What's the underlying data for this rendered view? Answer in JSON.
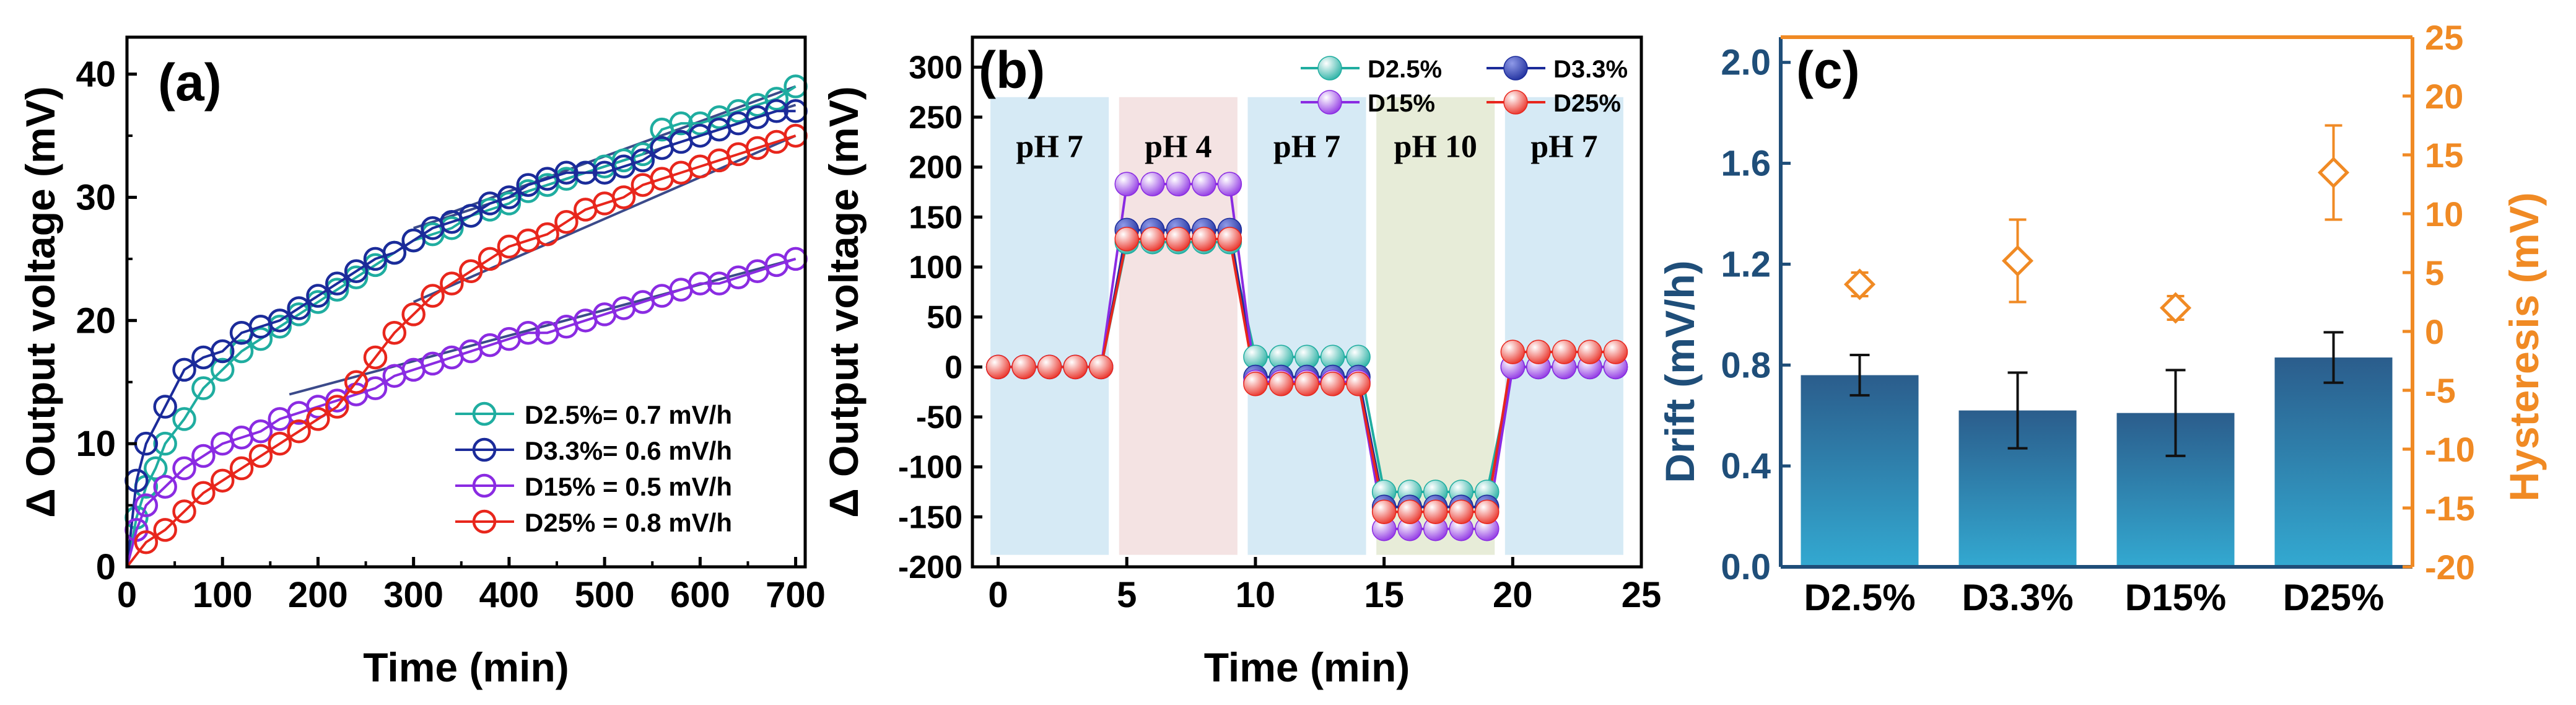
{
  "chart_data": [
    {
      "panel": "(a)",
      "type": "line",
      "xlabel": "Time (min)",
      "ylabel": "Δ Output voltage (mV)",
      "xlim": [
        0,
        710
      ],
      "ylim": [
        0,
        43
      ],
      "xticks": [
        0,
        100,
        200,
        300,
        400,
        500,
        600,
        700
      ],
      "yticks": [
        0,
        10,
        20,
        30,
        40
      ],
      "legend_position": "bottom-right",
      "series": [
        {
          "name": "D2.5%",
          "legend_label": "D2.5%= 0.7 mV/h",
          "color": "#1fada0",
          "x": [
            0,
            10,
            20,
            30,
            40,
            60,
            80,
            100,
            120,
            140,
            160,
            180,
            200,
            220,
            240,
            260,
            280,
            300,
            320,
            340,
            360,
            380,
            400,
            420,
            440,
            460,
            480,
            500,
            520,
            540,
            560,
            580,
            600,
            620,
            640,
            660,
            680,
            700
          ],
          "values": [
            0,
            4,
            6.5,
            8,
            10,
            12,
            14.5,
            16,
            17.5,
            18.5,
            19.5,
            20.5,
            21.5,
            22.5,
            23.5,
            24.5,
            25.5,
            26.5,
            27,
            27.5,
            28.5,
            29,
            29.5,
            30.5,
            31,
            31.5,
            32,
            32.5,
            33,
            33.5,
            35.5,
            36,
            36,
            36.5,
            37,
            37.5,
            38,
            39
          ]
        },
        {
          "name": "D3.3%",
          "legend_label": "D3.3%= 0.6 mV/h",
          "color": "#1b2b9a",
          "x": [
            0,
            10,
            20,
            40,
            60,
            80,
            100,
            120,
            140,
            160,
            180,
            200,
            220,
            240,
            260,
            280,
            300,
            320,
            340,
            360,
            380,
            400,
            420,
            440,
            460,
            480,
            500,
            520,
            540,
            560,
            580,
            600,
            620,
            640,
            660,
            680,
            700
          ],
          "values": [
            0,
            7,
            10,
            13,
            16,
            17,
            17.5,
            19,
            19.5,
            20,
            21,
            22,
            23,
            24,
            25,
            25.5,
            26.5,
            27.5,
            28,
            28.5,
            29.5,
            30,
            31,
            31.5,
            32,
            32,
            32,
            32.5,
            33,
            34,
            34.5,
            35,
            35.5,
            36,
            36.5,
            37,
            37
          ]
        },
        {
          "name": "D15%",
          "legend_label": "D15% = 0.5 mV/h",
          "color": "#8a2be2",
          "x": [
            0,
            10,
            20,
            40,
            60,
            80,
            100,
            120,
            140,
            160,
            180,
            200,
            220,
            240,
            260,
            280,
            300,
            320,
            340,
            360,
            380,
            400,
            420,
            440,
            460,
            480,
            500,
            520,
            540,
            560,
            580,
            600,
            620,
            640,
            660,
            680,
            700
          ],
          "values": [
            0,
            3,
            5,
            6.5,
            8,
            9,
            10,
            10.5,
            11,
            12,
            12.5,
            13,
            13.5,
            14,
            14.5,
            15.5,
            16,
            16.5,
            17,
            17.5,
            18,
            18.5,
            19,
            19,
            19.5,
            20,
            20.5,
            21,
            21.5,
            22,
            22.5,
            23,
            23,
            23.5,
            24,
            24.5,
            25
          ]
        },
        {
          "name": "D25%",
          "legend_label": "D25% = 0.8 mV/h",
          "color": "#e8261c",
          "x": [
            0,
            20,
            40,
            60,
            80,
            100,
            120,
            140,
            160,
            180,
            200,
            220,
            240,
            260,
            280,
            300,
            320,
            340,
            360,
            380,
            400,
            420,
            440,
            460,
            480,
            500,
            520,
            540,
            560,
            580,
            600,
            620,
            640,
            660,
            680,
            700
          ],
          "values": [
            0,
            2,
            3,
            4.5,
            6,
            7,
            8,
            9,
            10,
            11,
            12,
            13,
            15,
            17,
            19,
            20.5,
            22,
            23,
            24,
            25,
            26,
            26.5,
            27,
            28,
            29,
            29.5,
            30,
            31,
            31.5,
            32,
            32.5,
            33,
            33.5,
            34,
            34.5,
            35
          ]
        }
      ],
      "fit_lines": [
        {
          "series": "D2.5%",
          "x": [
            330,
            700
          ],
          "y": [
            28.5,
            39
          ]
        },
        {
          "series": "D3.3%",
          "x": [
            300,
            700
          ],
          "y": [
            27.5,
            37.5
          ]
        },
        {
          "series": "D15%",
          "x": [
            170,
            700
          ],
          "y": [
            14,
            25
          ]
        },
        {
          "series": "D25%",
          "x": [
            300,
            700
          ],
          "y": [
            21.5,
            35
          ]
        }
      ]
    },
    {
      "panel": "(b)",
      "type": "line",
      "xlabel": "Time (min)",
      "ylabel": "Δ Output voltage (mV)",
      "xlim": [
        -1,
        25
      ],
      "ylim": [
        -200,
        330
      ],
      "xticks": [
        0,
        5,
        10,
        15,
        20,
        25
      ],
      "yticks": [
        -200,
        -150,
        -100,
        -50,
        0,
        50,
        100,
        150,
        200,
        250,
        300
      ],
      "legend_position": "top-right",
      "ph_regions": [
        {
          "label": "pH 7",
          "x0": -0.3,
          "x1": 4.3,
          "color": "#d6eaf5"
        },
        {
          "label": "pH 4",
          "x0": 4.7,
          "x1": 9.3,
          "color": "#f4e3e3"
        },
        {
          "label": "pH 7",
          "x0": 9.7,
          "x1": 14.3,
          "color": "#d6eaf5"
        },
        {
          "label": "pH 10",
          "x0": 14.7,
          "x1": 19.3,
          "color": "#e7ecd8"
        },
        {
          "label": "pH 7",
          "x0": 19.7,
          "x1": 24.3,
          "color": "#d6eaf5"
        }
      ],
      "series": [
        {
          "name": "D2.5%",
          "color": "#1fada0",
          "x": [
            0,
            1,
            2,
            3,
            4,
            5,
            6,
            7,
            8,
            9,
            10,
            11,
            12,
            13,
            14,
            15,
            16,
            17,
            18,
            19,
            20,
            21,
            22,
            23,
            24
          ],
          "values": [
            0,
            0,
            0,
            0,
            0,
            125,
            125,
            125,
            125,
            125,
            10,
            10,
            10,
            10,
            10,
            -125,
            -125,
            -125,
            -125,
            -125,
            0,
            0,
            0,
            0,
            0
          ]
        },
        {
          "name": "D3.3%",
          "color": "#1b2b9a",
          "x": [
            0,
            1,
            2,
            3,
            4,
            5,
            6,
            7,
            8,
            9,
            10,
            11,
            12,
            13,
            14,
            15,
            16,
            17,
            18,
            19,
            20,
            21,
            22,
            23,
            24
          ],
          "values": [
            0,
            0,
            0,
            0,
            0,
            137,
            137,
            137,
            137,
            137,
            -10,
            -10,
            -10,
            -10,
            -10,
            -140,
            -140,
            -140,
            -140,
            -140,
            0,
            0,
            0,
            0,
            0
          ]
        },
        {
          "name": "D15%",
          "color": "#8a2be2",
          "x": [
            0,
            1,
            2,
            3,
            4,
            5,
            6,
            7,
            8,
            9,
            10,
            11,
            12,
            13,
            14,
            15,
            16,
            17,
            18,
            19,
            20,
            21,
            22,
            23,
            24
          ],
          "values": [
            0,
            0,
            0,
            0,
            0,
            183,
            183,
            183,
            183,
            183,
            -15,
            -15,
            -15,
            -15,
            -15,
            -162,
            -162,
            -162,
            -162,
            -162,
            0,
            0,
            0,
            0,
            0
          ]
        },
        {
          "name": "D25%",
          "color": "#e8261c",
          "x": [
            0,
            1,
            2,
            3,
            4,
            5,
            6,
            7,
            8,
            9,
            10,
            11,
            12,
            13,
            14,
            15,
            16,
            17,
            18,
            19,
            20,
            21,
            22,
            23,
            24
          ],
          "values": [
            0,
            0,
            0,
            0,
            0,
            128,
            128,
            128,
            128,
            128,
            -17,
            -17,
            -17,
            -17,
            -17,
            -145,
            -145,
            -145,
            -145,
            -145,
            15,
            15,
            15,
            15,
            15
          ]
        }
      ]
    },
    {
      "panel": "(c)",
      "type": "bar",
      "categories": [
        "D2.5%",
        "D3.3%",
        "D15%",
        "D25%"
      ],
      "ylabel": "Drift (mV/h)",
      "y2label": "Hysteresis (mV)",
      "ylim": [
        0,
        2.1
      ],
      "y2lim": [
        -20,
        25
      ],
      "yticks": [
        0.0,
        0.4,
        0.8,
        1.2,
        1.6,
        2.0
      ],
      "y2ticks": [
        -20,
        -15,
        -10,
        -5,
        0,
        5,
        10,
        15,
        20,
        25
      ],
      "drift": [
        0.76,
        0.62,
        0.61,
        0.83
      ],
      "drift_err": [
        0.08,
        0.15,
        0.17,
        0.1
      ],
      "hysteresis": [
        4,
        6,
        2,
        13.5
      ],
      "hysteresis_err": [
        1,
        3.5,
        1,
        4
      ]
    }
  ],
  "style": {
    "drift_axis_color": "#1f4e79",
    "hysteresis_axis_color": "#f08a24",
    "bar_top_color": "#2b5d8c",
    "bar_bottom_color": "#33a9d1"
  }
}
